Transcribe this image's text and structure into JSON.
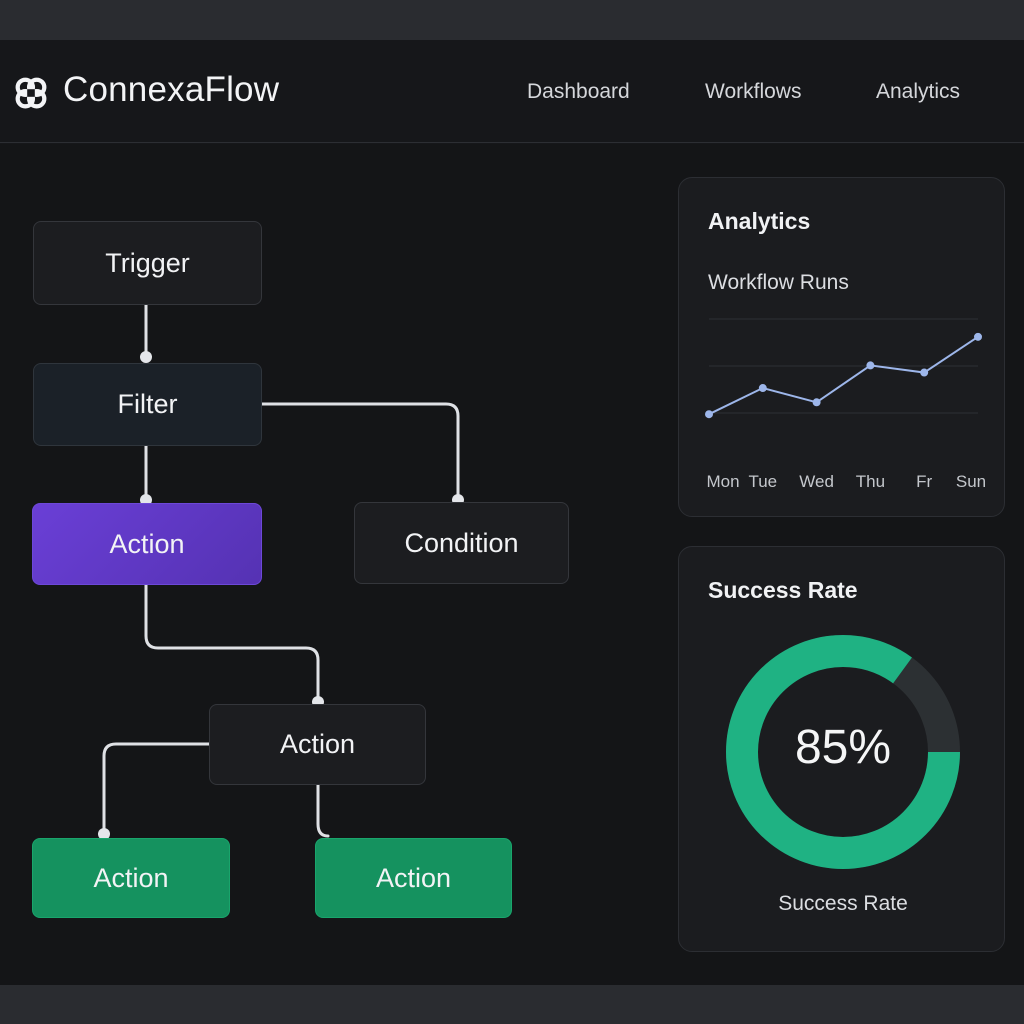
{
  "app": {
    "brand": "ConnexaFlow",
    "logo_icon": "knot-logo-icon"
  },
  "nav": {
    "items": [
      "Dashboard",
      "Workflows",
      "Analytics"
    ]
  },
  "workflow": {
    "nodes": {
      "trigger": "Trigger",
      "filter": "Filter",
      "action_primary": "Action",
      "condition": "Condition",
      "action_mid": "Action",
      "action_left": "Action",
      "action_right": "Action"
    },
    "colors": {
      "purple": "#6a3fd6",
      "green": "#15925f",
      "connector": "#dfe1e5"
    }
  },
  "analytics": {
    "title": "Analytics",
    "subtitle": "Workflow Runs",
    "chart_data": {
      "type": "line",
      "categories": [
        "Mon",
        "Tue",
        "Wed",
        "Thu",
        "Fr",
        "Sun"
      ],
      "values": [
        2,
        4.2,
        3,
        6.1,
        5.5,
        8.5
      ],
      "ylim": [
        0,
        10
      ],
      "grid": true,
      "color": "#9db6ea"
    }
  },
  "success": {
    "title": "Success Rate",
    "value_text": "85%",
    "label": "Success Rate",
    "fraction": 0.85,
    "colors": {
      "filled": "#1fb283",
      "track": "#2c3033"
    }
  }
}
